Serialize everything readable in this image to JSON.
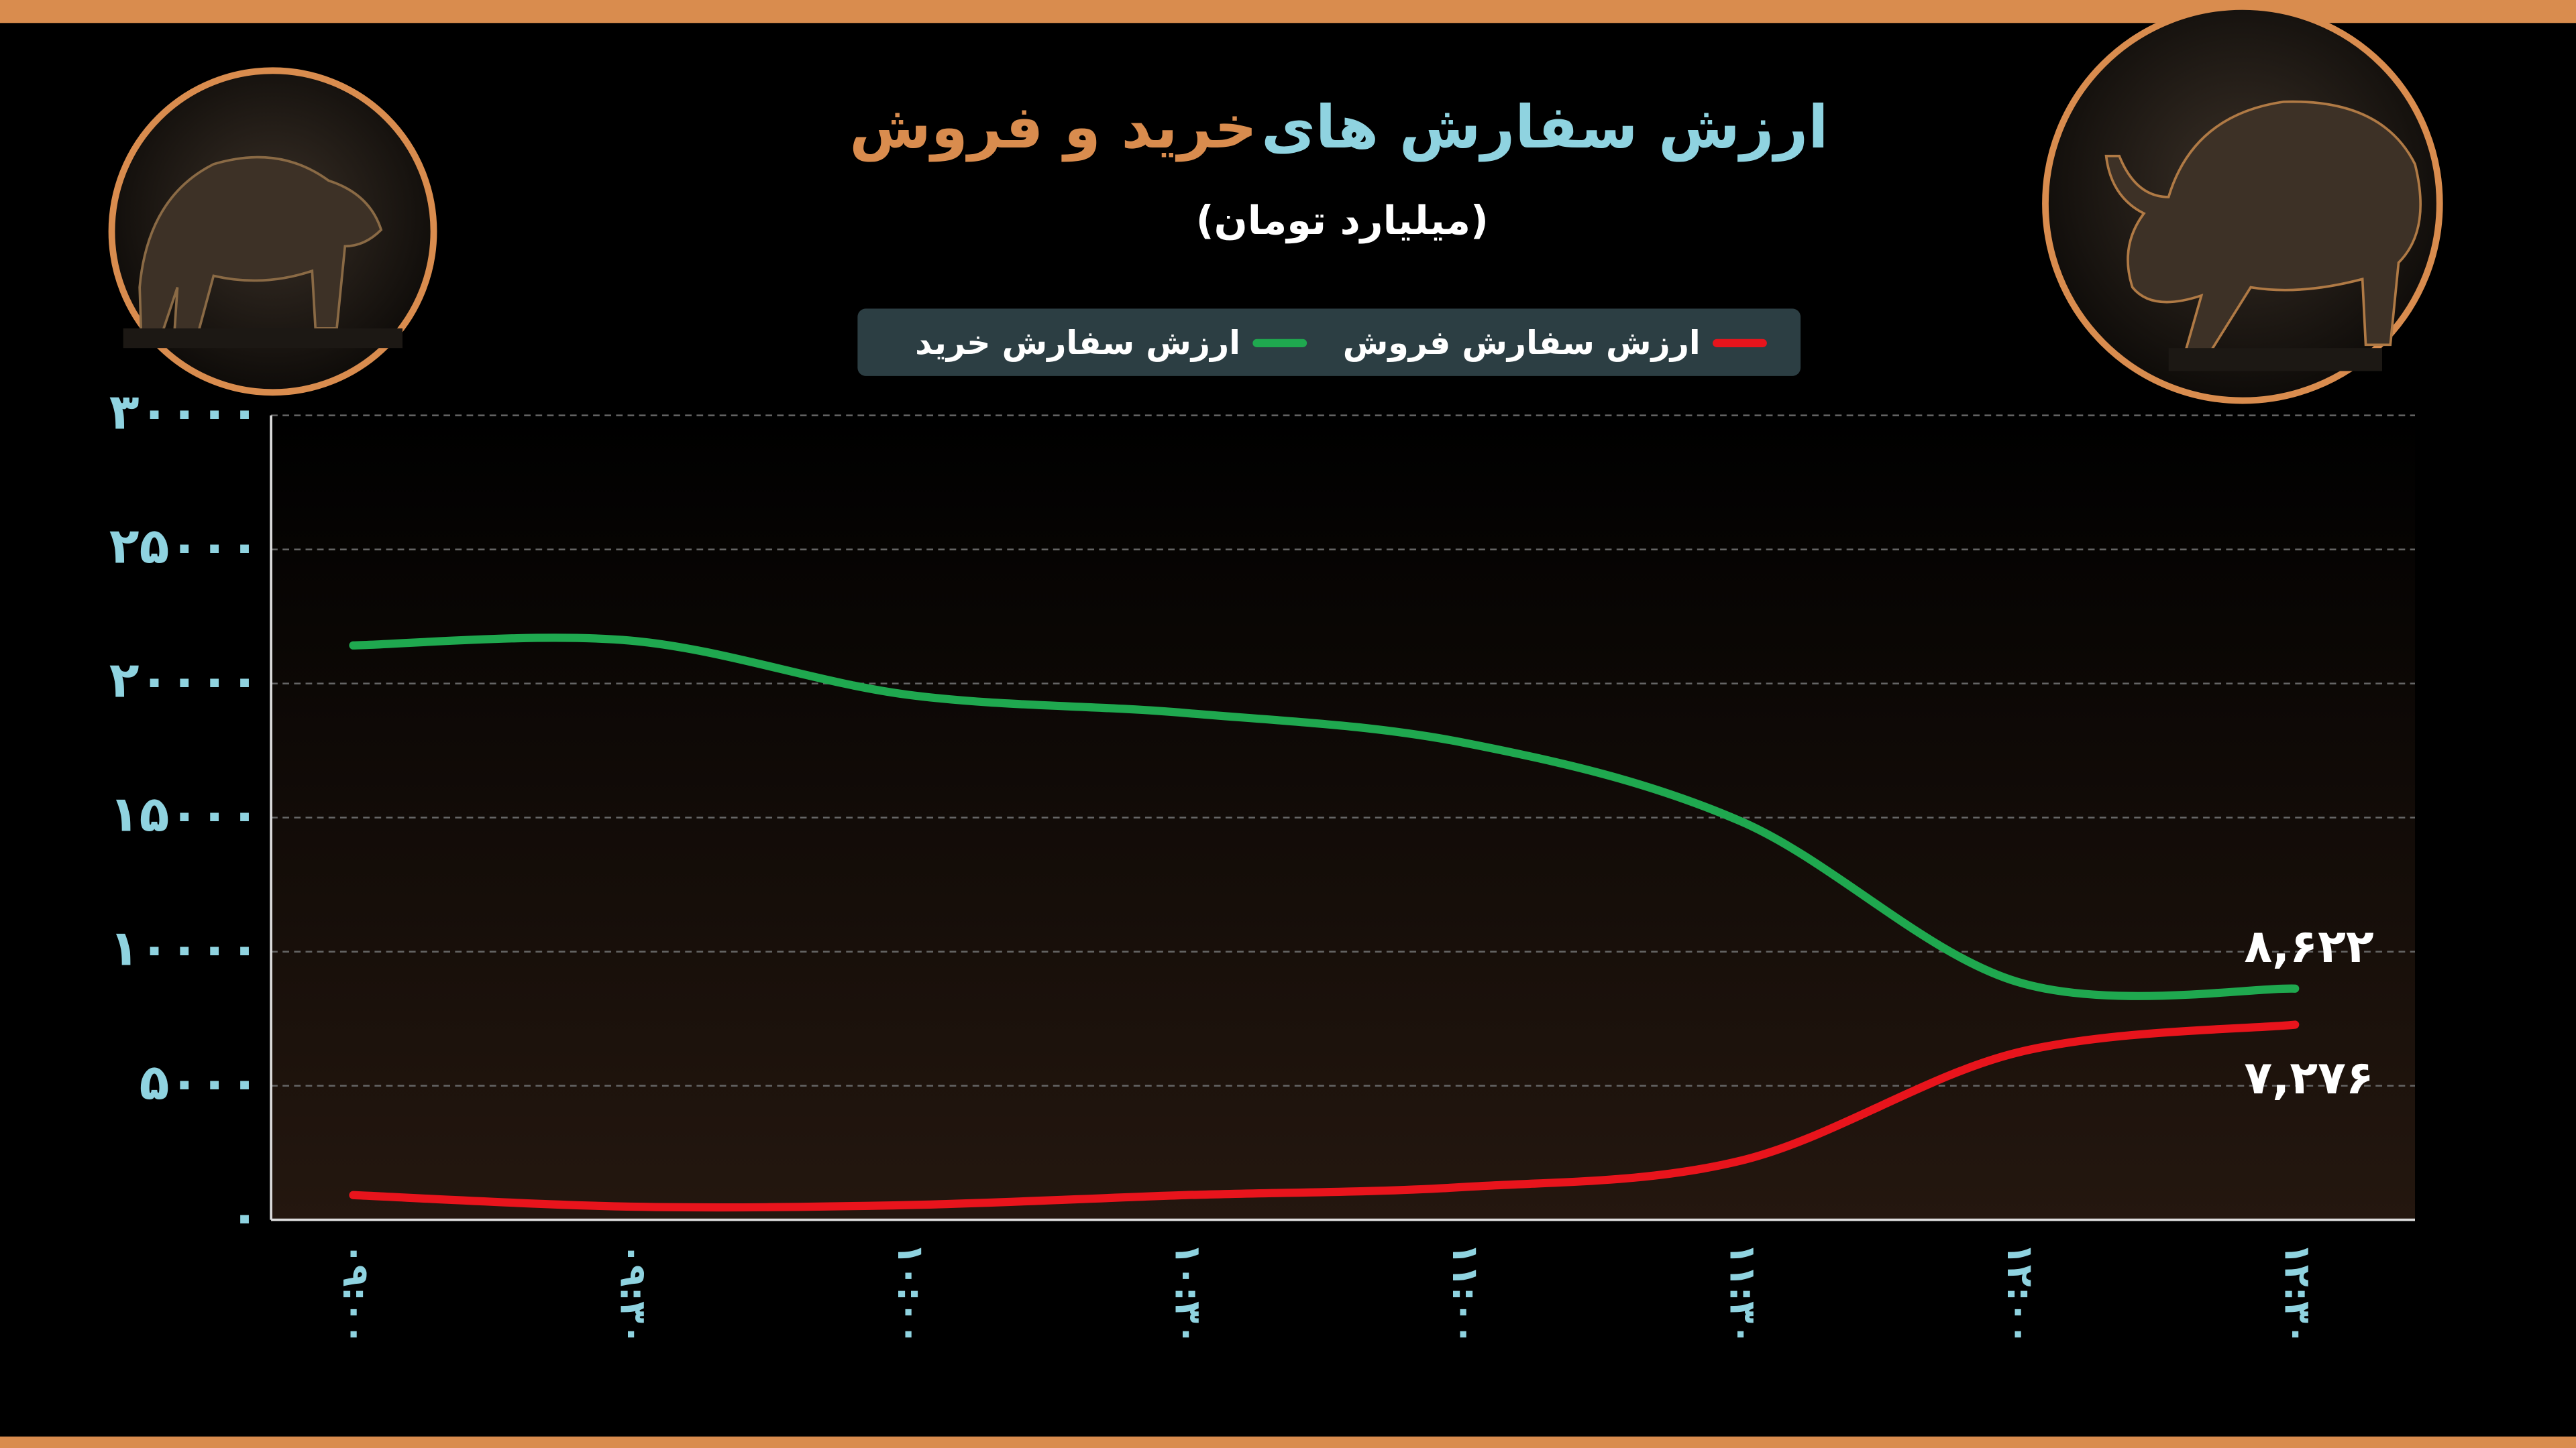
{
  "chart_data": {
    "type": "line",
    "title": "ارزش سفارش های",
    "title_highlight": "خرید و فروش",
    "subtitle": "(میلیارد تومان)",
    "categories": [
      "۰۹:۰۰",
      "۰۹:۳۰",
      "۱۰:۰۰",
      "۱۰:۳۰",
      "۱۱:۰۰",
      "۱۱:۳۰",
      "۱۲:۰۰",
      "۱۲:۳۰"
    ],
    "series": [
      {
        "name": "ارزش سفارش خرید",
        "color": "#1fa84f",
        "values": [
          21420,
          21600,
          19580,
          18900,
          17800,
          14870,
          8870,
          8622
        ],
        "value_labels": [
          null,
          null,
          null,
          null,
          null,
          null,
          null,
          "۸,۶۲۲"
        ]
      },
      {
        "name": "ارزش سفارش فروش",
        "color": "#e8141c",
        "values": [
          920,
          490,
          550,
          920,
          1220,
          2200,
          6240,
          7276
        ],
        "value_labels": [
          null,
          null,
          null,
          null,
          null,
          null,
          null,
          "۷,۲۷۶"
        ]
      }
    ],
    "ylim": [
      0,
      30000
    ],
    "yticks": [
      {
        "value": 0,
        "label": "۰"
      },
      {
        "value": 5000,
        "label": "۵۰۰۰"
      },
      {
        "value": 10000,
        "label": "۱۰۰۰۰"
      },
      {
        "value": 15000,
        "label": "۱۵۰۰۰"
      },
      {
        "value": 20000,
        "label": "۲۰۰۰۰"
      },
      {
        "value": 25000,
        "label": "۲۵۰۰۰"
      },
      {
        "value": 30000,
        "label": "۳۰۰۰۰"
      }
    ],
    "grid": true
  }
}
